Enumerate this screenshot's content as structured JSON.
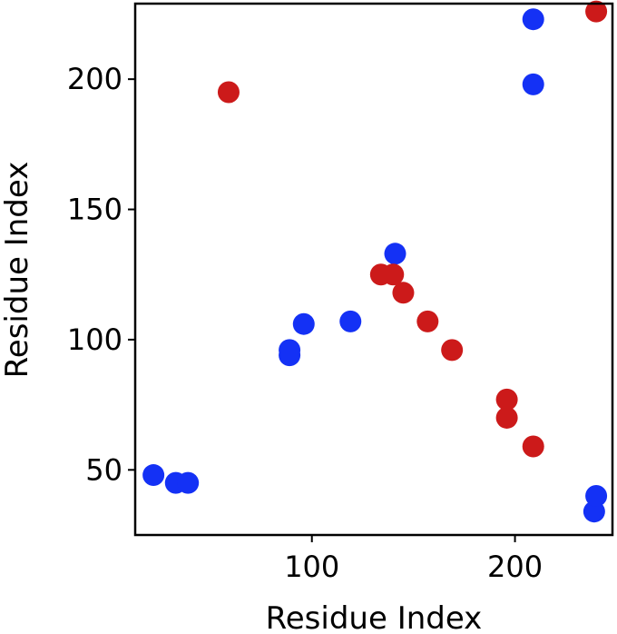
{
  "chart_data": {
    "type": "scatter",
    "xlabel": "Residue Index",
    "ylabel": "Residue Index",
    "xlim": [
      13,
      248
    ],
    "ylim": [
      25,
      229
    ],
    "xticks": [
      100,
      200
    ],
    "yticks": [
      50,
      100,
      150,
      200
    ],
    "grid": false,
    "series": [
      {
        "color": "#1431f5",
        "points": [
          [
            22,
            48
          ],
          [
            33,
            45
          ],
          [
            39,
            45
          ],
          [
            89,
            94
          ],
          [
            89,
            96
          ],
          [
            96,
            106
          ],
          [
            119,
            107
          ],
          [
            141,
            133
          ],
          [
            209,
            198
          ],
          [
            209,
            223
          ],
          [
            239,
            34
          ],
          [
            240,
            40
          ]
        ]
      },
      {
        "color": "#cc1a1a",
        "points": [
          [
            59,
            195
          ],
          [
            134,
            125
          ],
          [
            140,
            125
          ],
          [
            145,
            118
          ],
          [
            157,
            107
          ],
          [
            169,
            96
          ],
          [
            196,
            77
          ],
          [
            196,
            70
          ],
          [
            209,
            59
          ],
          [
            240,
            226
          ]
        ]
      }
    ]
  }
}
